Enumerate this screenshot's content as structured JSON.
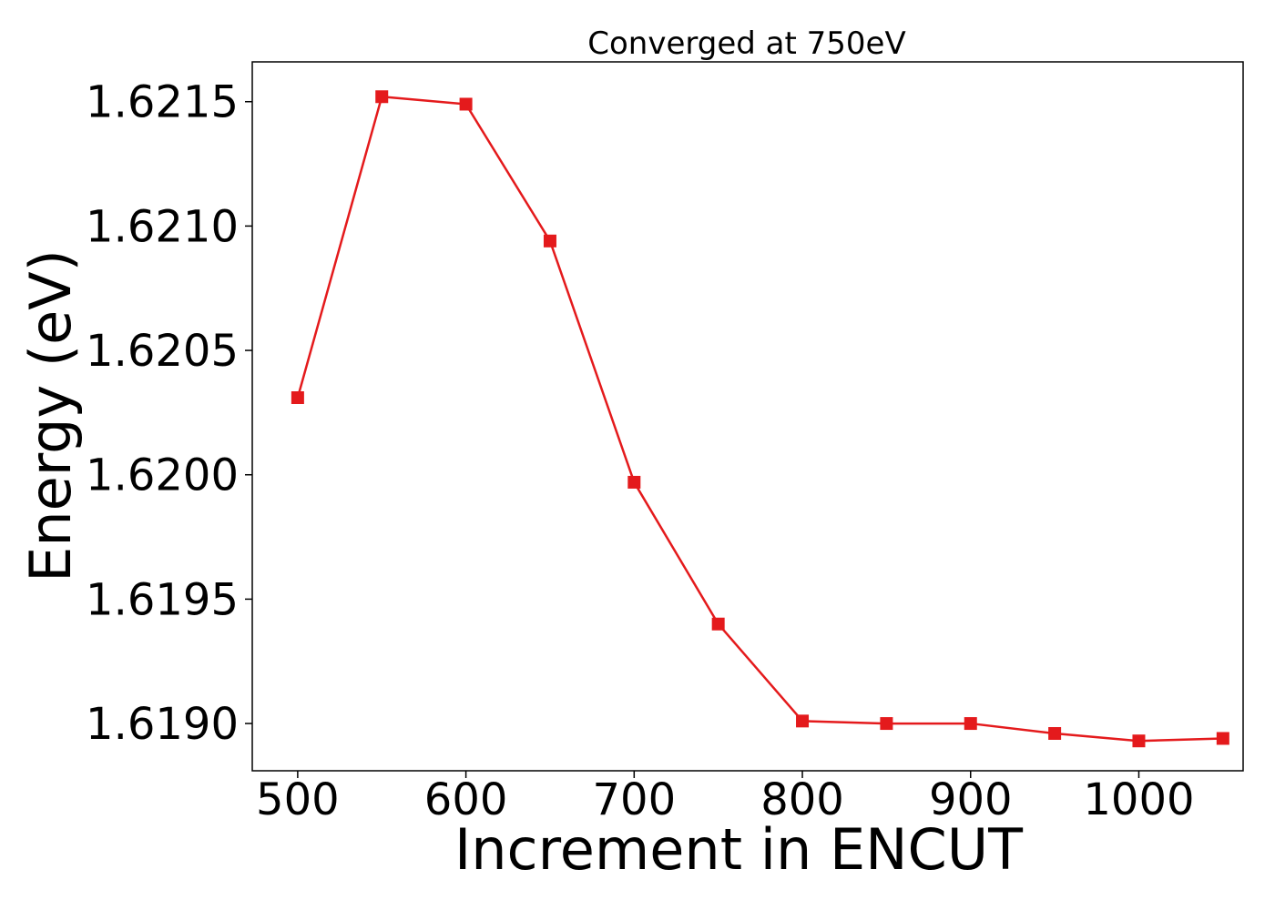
{
  "chart_data": {
    "type": "line",
    "title": "Converged at 750eV",
    "xlabel": "Increment in ENCUT",
    "ylabel": "Energy (eV)",
    "x": [
      500,
      550,
      600,
      650,
      700,
      750,
      800,
      850,
      900,
      950,
      1000,
      1050
    ],
    "series": [
      {
        "values": [
          1.62031,
          1.62152,
          1.62149,
          1.62094,
          1.61997,
          1.6194,
          1.61901,
          1.619,
          1.619,
          1.61896,
          1.61893,
          1.61894
        ]
      }
    ],
    "x_ticks": [
      500,
      600,
      700,
      800,
      900,
      1000
    ],
    "x_tick_labels": [
      "500",
      "600",
      "700",
      "800",
      "900",
      "1000"
    ],
    "y_ticks": [
      1.619,
      1.6195,
      1.62,
      1.6205,
      1.621,
      1.6215
    ],
    "y_tick_labels": [
      "1.6190",
      "1.6195",
      "1.6200",
      "1.6205",
      "1.6210",
      "1.6215"
    ],
    "xlim": [
      473,
      1062
    ],
    "ylim": [
      1.61881,
      1.62166
    ],
    "grid": false,
    "marker": "square",
    "color": "#e41a1c"
  }
}
